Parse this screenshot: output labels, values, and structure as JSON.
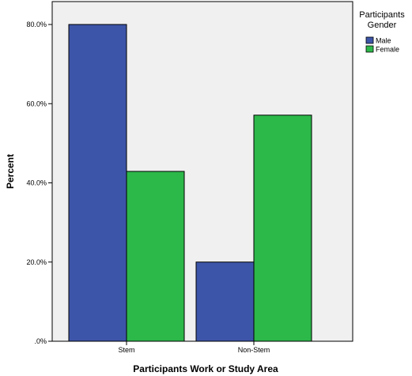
{
  "chart_data": {
    "type": "bar",
    "categories": [
      "Stem",
      "Non-Stem"
    ],
    "series": [
      {
        "name": "Male",
        "values": [
          80.0,
          20.0
        ],
        "color": "#3d55a8"
      },
      {
        "name": "Female",
        "values": [
          42.9,
          57.1
        ],
        "color": "#2db84a"
      }
    ],
    "xlabel": "Participants Work or Study Area",
    "ylabel": "Percent",
    "ylim": [
      0,
      80
    ],
    "yticks": [
      ".0%",
      "20.0%",
      "40.0%",
      "60.0%",
      "80.0%"
    ],
    "legend": {
      "title_lines": [
        "Participants",
        "Gender"
      ],
      "placement": "top-right"
    },
    "grid": false,
    "plot_background": "#f0f0f0"
  }
}
